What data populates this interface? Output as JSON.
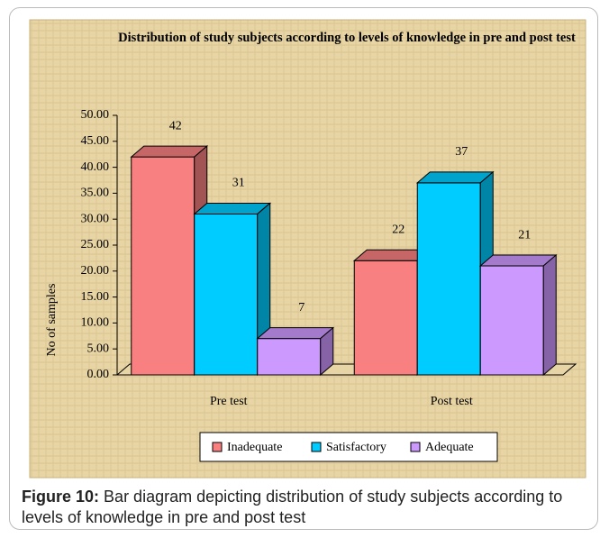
{
  "chart_data": {
    "type": "bar3d",
    "title": "Distribution of study subjects according to levels of knowledge in pre and post test",
    "ylabel": "No of samples",
    "categories": [
      "Pre test",
      "Post test"
    ],
    "series": [
      {
        "name": "Inadequate",
        "color": "#f98080",
        "values": [
          42,
          22
        ]
      },
      {
        "name": "Satisfactory",
        "color": "#00ccff",
        "values": [
          31,
          37
        ]
      },
      {
        "name": "Adequate",
        "color": "#cc99ff",
        "values": [
          7,
          21
        ]
      }
    ],
    "ylim": [
      0,
      50
    ],
    "yticks": [
      {
        "value": 0,
        "label": "0.00"
      },
      {
        "value": 5,
        "label": "5.00"
      },
      {
        "value": 10,
        "label": "10.00"
      },
      {
        "value": 15,
        "label": "15.00"
      },
      {
        "value": 20,
        "label": "20.00"
      },
      {
        "value": 25,
        "label": "25.00"
      },
      {
        "value": 30,
        "label": "30.00"
      },
      {
        "value": 35,
        "label": "35.00"
      },
      {
        "value": 40,
        "label": "40.00"
      },
      {
        "value": 45,
        "label": "45.00"
      },
      {
        "value": 50,
        "label": "50.00"
      }
    ],
    "legend": "bottom",
    "grid": false
  },
  "caption": {
    "label": "Figure 10:",
    "text": "Bar diagram depicting distribution of study subjects according to levels of knowledge in pre and post test"
  }
}
